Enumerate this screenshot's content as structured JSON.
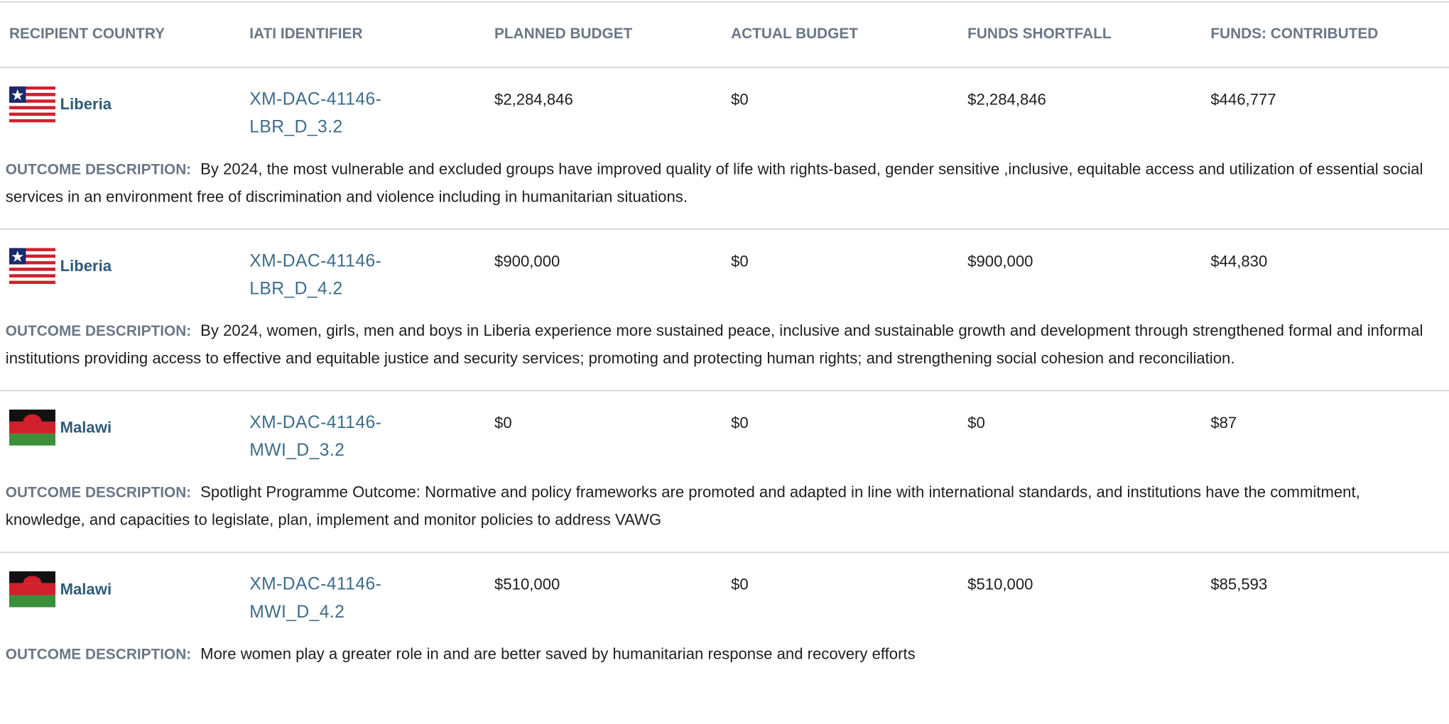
{
  "table": {
    "headers": [
      "RECIPIENT COUNTRY",
      "IATI IDENTIFIER",
      "PLANNED BUDGET",
      "ACTUAL BUDGET",
      "FUNDS SHORTFALL",
      "FUNDS: CONTRIBUTED"
    ],
    "outcome_label": "OUTCOME DESCRIPTION:",
    "rows": [
      {
        "country": "Liberia",
        "identifier": "XM-DAC-41146-LBR_D_3.2",
        "planned": "$2,284,846",
        "actual": "$0",
        "shortfall": "$2,284,846",
        "contributed": "$446,777",
        "outcome": "By 2024, the most vulnerable and excluded groups have improved quality of life with rights-based, gender sensitive ,inclusive, equitable access and utilization of essential social services in an environment free of discrimination and violence including in humanitarian situations."
      },
      {
        "country": "Liberia",
        "identifier": "XM-DAC-41146-LBR_D_4.2",
        "planned": "$900,000",
        "actual": "$0",
        "shortfall": "$900,000",
        "contributed": "$44,830",
        "outcome": "By 2024, women, girls, men and boys in Liberia experience more sustained peace, inclusive and sustainable growth and development through strengthened formal and informal institutions providing access to effective and equitable justice and security services; promoting and protecting human rights; and strengthening social cohesion and reconciliation."
      },
      {
        "country": "Malawi",
        "identifier": "XM-DAC-41146-MWI_D_3.2",
        "planned": "$0",
        "actual": "$0",
        "shortfall": "$0",
        "contributed": "$87",
        "outcome": "Spotlight Programme Outcome: Normative and policy frameworks are promoted and adapted in line with international standards, and institutions have the commitment, knowledge, and capacities to legislate, plan, implement and monitor policies to address VAWG"
      },
      {
        "country": "Malawi",
        "identifier": "XM-DAC-41146-MWI_D_4.2",
        "planned": "$510,000",
        "actual": "$0",
        "shortfall": "$510,000",
        "contributed": "$85,593",
        "outcome": "More women play a greater role in and are better saved by humanitarian response and recovery efforts"
      }
    ]
  }
}
